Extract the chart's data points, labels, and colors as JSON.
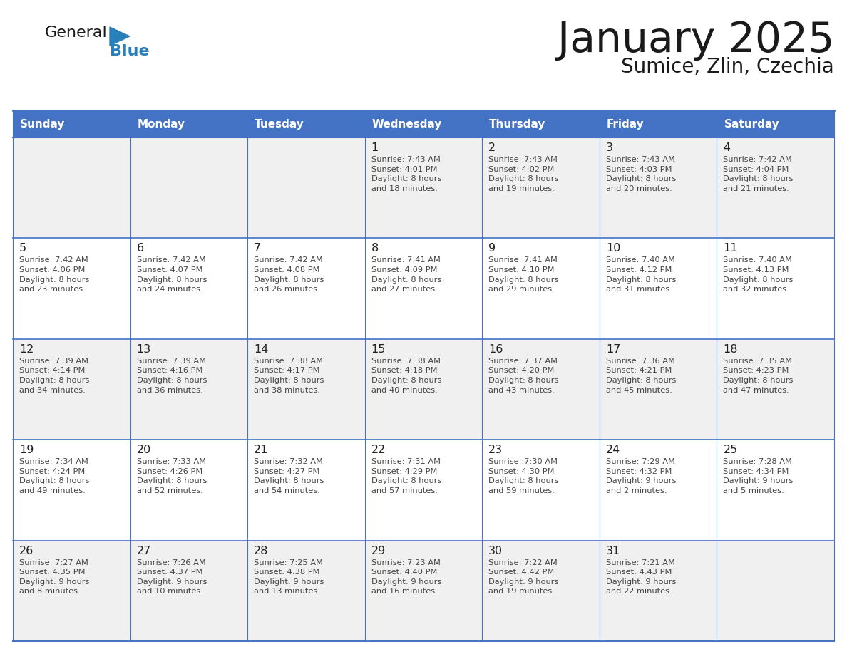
{
  "title": "January 2025",
  "subtitle": "Sumice, Zlin, Czechia",
  "days_of_week": [
    "Sunday",
    "Monday",
    "Tuesday",
    "Wednesday",
    "Thursday",
    "Friday",
    "Saturday"
  ],
  "header_bg": "#4472C4",
  "header_text": "#FFFFFF",
  "cell_bg_white": "#FFFFFF",
  "cell_bg_gray": "#F0F0F0",
  "border_color": "#4472C4",
  "row_line_color": "#4472C4",
  "day_num_color": "#222222",
  "text_color": "#444444",
  "title_color": "#1a1a1a",
  "subtitle_color": "#1a1a1a",
  "logo_general_color": "#1a1a1a",
  "logo_blue_color": "#2980B9",
  "weeks": [
    [
      {
        "day": "",
        "info": ""
      },
      {
        "day": "",
        "info": ""
      },
      {
        "day": "",
        "info": ""
      },
      {
        "day": "1",
        "info": "Sunrise: 7:43 AM\nSunset: 4:01 PM\nDaylight: 8 hours\nand 18 minutes."
      },
      {
        "day": "2",
        "info": "Sunrise: 7:43 AM\nSunset: 4:02 PM\nDaylight: 8 hours\nand 19 minutes."
      },
      {
        "day": "3",
        "info": "Sunrise: 7:43 AM\nSunset: 4:03 PM\nDaylight: 8 hours\nand 20 minutes."
      },
      {
        "day": "4",
        "info": "Sunrise: 7:42 AM\nSunset: 4:04 PM\nDaylight: 8 hours\nand 21 minutes."
      }
    ],
    [
      {
        "day": "5",
        "info": "Sunrise: 7:42 AM\nSunset: 4:06 PM\nDaylight: 8 hours\nand 23 minutes."
      },
      {
        "day": "6",
        "info": "Sunrise: 7:42 AM\nSunset: 4:07 PM\nDaylight: 8 hours\nand 24 minutes."
      },
      {
        "day": "7",
        "info": "Sunrise: 7:42 AM\nSunset: 4:08 PM\nDaylight: 8 hours\nand 26 minutes."
      },
      {
        "day": "8",
        "info": "Sunrise: 7:41 AM\nSunset: 4:09 PM\nDaylight: 8 hours\nand 27 minutes."
      },
      {
        "day": "9",
        "info": "Sunrise: 7:41 AM\nSunset: 4:10 PM\nDaylight: 8 hours\nand 29 minutes."
      },
      {
        "day": "10",
        "info": "Sunrise: 7:40 AM\nSunset: 4:12 PM\nDaylight: 8 hours\nand 31 minutes."
      },
      {
        "day": "11",
        "info": "Sunrise: 7:40 AM\nSunset: 4:13 PM\nDaylight: 8 hours\nand 32 minutes."
      }
    ],
    [
      {
        "day": "12",
        "info": "Sunrise: 7:39 AM\nSunset: 4:14 PM\nDaylight: 8 hours\nand 34 minutes."
      },
      {
        "day": "13",
        "info": "Sunrise: 7:39 AM\nSunset: 4:16 PM\nDaylight: 8 hours\nand 36 minutes."
      },
      {
        "day": "14",
        "info": "Sunrise: 7:38 AM\nSunset: 4:17 PM\nDaylight: 8 hours\nand 38 minutes."
      },
      {
        "day": "15",
        "info": "Sunrise: 7:38 AM\nSunset: 4:18 PM\nDaylight: 8 hours\nand 40 minutes."
      },
      {
        "day": "16",
        "info": "Sunrise: 7:37 AM\nSunset: 4:20 PM\nDaylight: 8 hours\nand 43 minutes."
      },
      {
        "day": "17",
        "info": "Sunrise: 7:36 AM\nSunset: 4:21 PM\nDaylight: 8 hours\nand 45 minutes."
      },
      {
        "day": "18",
        "info": "Sunrise: 7:35 AM\nSunset: 4:23 PM\nDaylight: 8 hours\nand 47 minutes."
      }
    ],
    [
      {
        "day": "19",
        "info": "Sunrise: 7:34 AM\nSunset: 4:24 PM\nDaylight: 8 hours\nand 49 minutes."
      },
      {
        "day": "20",
        "info": "Sunrise: 7:33 AM\nSunset: 4:26 PM\nDaylight: 8 hours\nand 52 minutes."
      },
      {
        "day": "21",
        "info": "Sunrise: 7:32 AM\nSunset: 4:27 PM\nDaylight: 8 hours\nand 54 minutes."
      },
      {
        "day": "22",
        "info": "Sunrise: 7:31 AM\nSunset: 4:29 PM\nDaylight: 8 hours\nand 57 minutes."
      },
      {
        "day": "23",
        "info": "Sunrise: 7:30 AM\nSunset: 4:30 PM\nDaylight: 8 hours\nand 59 minutes."
      },
      {
        "day": "24",
        "info": "Sunrise: 7:29 AM\nSunset: 4:32 PM\nDaylight: 9 hours\nand 2 minutes."
      },
      {
        "day": "25",
        "info": "Sunrise: 7:28 AM\nSunset: 4:34 PM\nDaylight: 9 hours\nand 5 minutes."
      }
    ],
    [
      {
        "day": "26",
        "info": "Sunrise: 7:27 AM\nSunset: 4:35 PM\nDaylight: 9 hours\nand 8 minutes."
      },
      {
        "day": "27",
        "info": "Sunrise: 7:26 AM\nSunset: 4:37 PM\nDaylight: 9 hours\nand 10 minutes."
      },
      {
        "day": "28",
        "info": "Sunrise: 7:25 AM\nSunset: 4:38 PM\nDaylight: 9 hours\nand 13 minutes."
      },
      {
        "day": "29",
        "info": "Sunrise: 7:23 AM\nSunset: 4:40 PM\nDaylight: 9 hours\nand 16 minutes."
      },
      {
        "day": "30",
        "info": "Sunrise: 7:22 AM\nSunset: 4:42 PM\nDaylight: 9 hours\nand 19 minutes."
      },
      {
        "day": "31",
        "info": "Sunrise: 7:21 AM\nSunset: 4:43 PM\nDaylight: 9 hours\nand 22 minutes."
      },
      {
        "day": "",
        "info": ""
      }
    ]
  ]
}
